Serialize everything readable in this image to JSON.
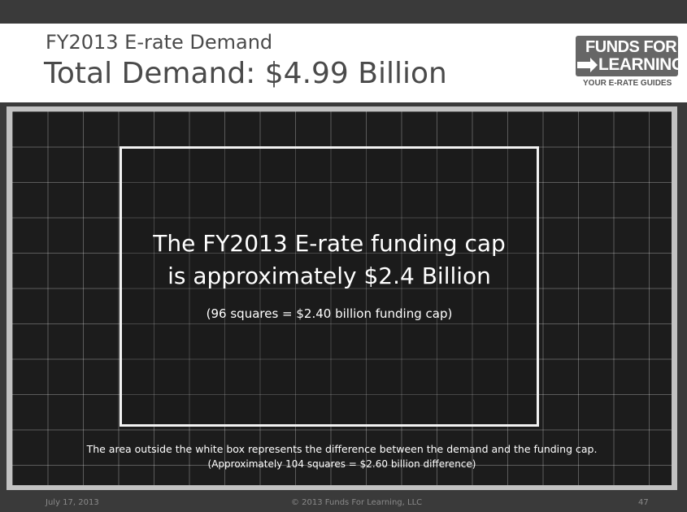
{
  "header": {
    "subtitle": "FY2013 E-rate Demand",
    "title": "Total Demand: $4.99 Billion"
  },
  "logo": {
    "line1": "FUNDS FOR",
    "line2": "LEARNING",
    "tagline": "YOUR E-RATE GUIDES"
  },
  "grid": {
    "funding_cap_line1": "The FY2013 E-rate funding cap",
    "funding_cap_line2": "is approximately $2.4 Billion",
    "funding_cap_note": "(96 squares = $2.40 billion funding cap)",
    "difference_line1": "The area outside the white box represents the difference between the demand and the funding cap.",
    "difference_line2": "(Approximately 104 squares = $2.60 billion difference)"
  },
  "footer": {
    "date": "July 17, 2013",
    "copyright": "© 2013 Funds For Learning, LLC",
    "page_number": "47"
  },
  "colors": {
    "top_bar": "#3a3a3a",
    "grid_background": "#1c1c1c",
    "box_border": "#f2f2f2",
    "title_text": "#4a4a4a"
  }
}
